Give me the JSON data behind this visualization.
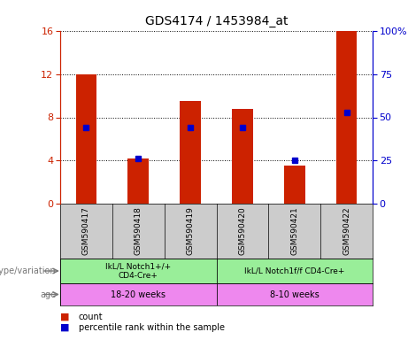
{
  "title": "GDS4174 / 1453984_at",
  "samples": [
    "GSM590417",
    "GSM590418",
    "GSM590419",
    "GSM590420",
    "GSM590421",
    "GSM590422"
  ],
  "count_values": [
    12.0,
    4.2,
    9.5,
    8.8,
    3.5,
    16.0
  ],
  "percentile_values": [
    44,
    26,
    44,
    44,
    25,
    53
  ],
  "ylim_left": [
    0,
    16
  ],
  "ylim_right": [
    0,
    100
  ],
  "yticks_left": [
    0,
    4,
    8,
    12,
    16
  ],
  "yticks_right": [
    0,
    25,
    50,
    75,
    100
  ],
  "bar_color": "#cc2200",
  "marker_color": "#0000cc",
  "genotype_groups": [
    {
      "label": "IkL/L Notch1+/+\nCD4-Cre+",
      "start": 0,
      "end": 3,
      "color": "#99ee99"
    },
    {
      "label": "IkL/L Notch1f/f CD4-Cre+",
      "start": 3,
      "end": 6,
      "color": "#99ee99"
    }
  ],
  "age_groups": [
    {
      "label": "18-20 weeks",
      "start": 0,
      "end": 3,
      "color": "#ee88ee"
    },
    {
      "label": "8-10 weeks",
      "start": 3,
      "end": 6,
      "color": "#ee88ee"
    }
  ],
  "legend_count_label": "count",
  "legend_percentile_label": "percentile rank within the sample",
  "left_label_genotype": "genotype/variation",
  "left_label_age": "age",
  "bg_color": "#ffffff",
  "sample_bg_color": "#cccccc",
  "bar_width": 0.4
}
